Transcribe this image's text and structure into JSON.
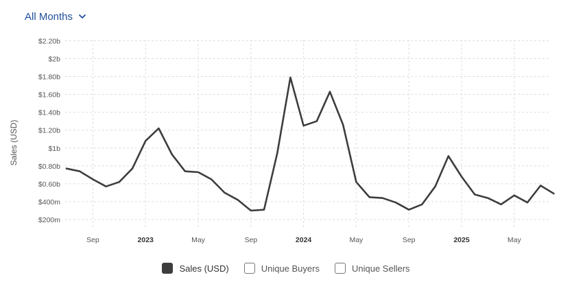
{
  "filter": {
    "label": "All Months",
    "icon": "chevron-down-icon"
  },
  "colors": {
    "line": "#3d3d3d",
    "grid": "#dddddd",
    "accent": "#1f4e9a",
    "axis_text": "#555555"
  },
  "legend": [
    {
      "label": "Sales (USD)",
      "checked": true
    },
    {
      "label": "Unique Buyers",
      "checked": false
    },
    {
      "label": "Unique Sellers",
      "checked": false
    }
  ],
  "chart_data": {
    "type": "line",
    "ylabel": "Sales (USD)",
    "ylim": [
      0.1,
      2.2
    ],
    "grid": true,
    "legend_position": "bottom",
    "y_ticks": [
      {
        "value": 0.2,
        "label": "$200m"
      },
      {
        "value": 0.4,
        "label": "$400m"
      },
      {
        "value": 0.6,
        "label": "$0.60b"
      },
      {
        "value": 0.8,
        "label": "$0.80b"
      },
      {
        "value": 1.0,
        "label": "$1b"
      },
      {
        "value": 1.2,
        "label": "$1.20b"
      },
      {
        "value": 1.4,
        "label": "$1.40b"
      },
      {
        "value": 1.6,
        "label": "$1.60b"
      },
      {
        "value": 1.8,
        "label": "$1.80b"
      },
      {
        "value": 2.0,
        "label": "$2b"
      },
      {
        "value": 2.2,
        "label": "$2.20b"
      }
    ],
    "x_ticks": [
      {
        "label": "Sep",
        "bold": false
      },
      {
        "label": "2023",
        "bold": true
      },
      {
        "label": "May",
        "bold": false
      },
      {
        "label": "Sep",
        "bold": false
      },
      {
        "label": "2024",
        "bold": true
      },
      {
        "label": "May",
        "bold": false
      },
      {
        "label": "Sep",
        "bold": false
      },
      {
        "label": "2025",
        "bold": true
      },
      {
        "label": "May",
        "bold": false
      }
    ],
    "x_tick_months": [
      "2022-09",
      "2023-01",
      "2023-05",
      "2023-09",
      "2024-01",
      "2024-05",
      "2024-09",
      "2025-01",
      "2025-05"
    ],
    "series": [
      {
        "points": [
          [
            "2022-07",
            0.77
          ],
          [
            "2022-08",
            0.74
          ],
          [
            "2022-09",
            0.65
          ],
          [
            "2022-10",
            0.57
          ],
          [
            "2022-11",
            0.62
          ],
          [
            "2022-12",
            0.77
          ],
          [
            "2023-01",
            1.08
          ],
          [
            "2023-02",
            1.22
          ],
          [
            "2023-03",
            0.93
          ],
          [
            "2023-04",
            0.74
          ],
          [
            "2023-05",
            0.73
          ],
          [
            "2023-06",
            0.65
          ],
          [
            "2023-07",
            0.5
          ],
          [
            "2023-08",
            0.42
          ],
          [
            "2023-09",
            0.3
          ],
          [
            "2023-10",
            0.31
          ],
          [
            "2023-11",
            0.94
          ],
          [
            "2023-12",
            1.79
          ],
          [
            "2024-01",
            1.25
          ],
          [
            "2024-02",
            1.3
          ],
          [
            "2024-03",
            1.63
          ],
          [
            "2024-04",
            1.26
          ],
          [
            "2024-05",
            0.62
          ],
          [
            "2024-06",
            0.45
          ],
          [
            "2024-07",
            0.44
          ],
          [
            "2024-08",
            0.39
          ],
          [
            "2024-09",
            0.31
          ],
          [
            "2024-10",
            0.37
          ],
          [
            "2024-11",
            0.57
          ],
          [
            "2024-12",
            0.91
          ],
          [
            "2025-01",
            0.68
          ],
          [
            "2025-02",
            0.48
          ],
          [
            "2025-03",
            0.44
          ],
          [
            "2025-04",
            0.37
          ],
          [
            "2025-05",
            0.47
          ],
          [
            "2025-06",
            0.39
          ],
          [
            "2025-07",
            0.58
          ],
          [
            "2025-08",
            0.49
          ]
        ]
      }
    ]
  }
}
